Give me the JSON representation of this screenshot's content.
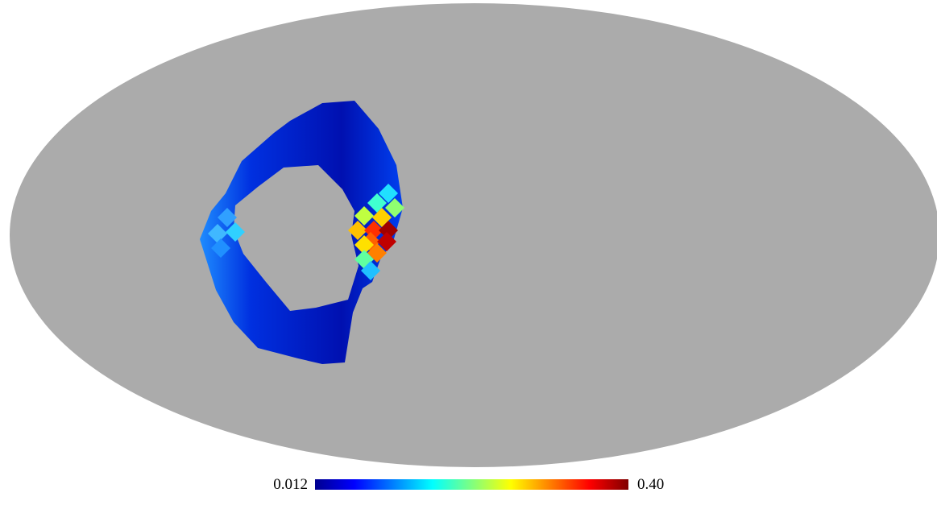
{
  "chart_data": {
    "type": "mollweide",
    "background": "#ababab",
    "colormap": "jet",
    "colorbar": {
      "range": [
        0.012,
        0.4
      ],
      "ticks": [
        0.012,
        {
          "value": 0.4,
          "label": "0.40"
        }
      ]
    }
  }
}
